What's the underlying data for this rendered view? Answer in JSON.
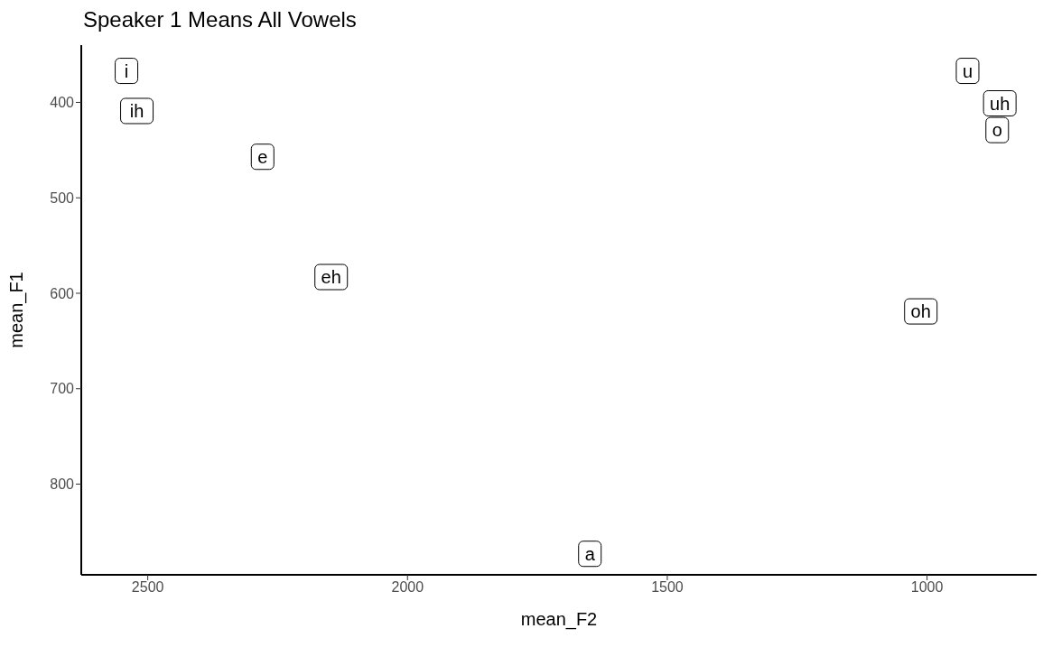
{
  "chart_data": {
    "type": "scatter",
    "title": "Speaker 1 Means All Vowels",
    "xlabel": "mean_F2",
    "ylabel": "mean_F1",
    "grid": false,
    "legend": false,
    "xlim": [
      2628,
      789
    ],
    "xticks": [
      2500,
      2000,
      1500,
      1000
    ],
    "ylim": [
      895,
      340
    ],
    "yticks": [
      400,
      500,
      600,
      700,
      800
    ],
    "series": [
      {
        "name": "i",
        "color": "#000000",
        "x": [
          2541
        ],
        "values": [
          367
        ]
      },
      {
        "name": "ih",
        "color": "#000000",
        "x": [
          2521
        ],
        "values": [
          409
        ]
      },
      {
        "name": "e",
        "color": "#000000",
        "x": [
          2279
        ],
        "values": [
          457
        ]
      },
      {
        "name": "eh",
        "color": "#000000",
        "x": [
          2147
        ],
        "values": [
          583
        ]
      },
      {
        "name": "a",
        "color": "#000000",
        "x": [
          1649
        ],
        "values": [
          873
        ]
      },
      {
        "name": "oh",
        "color": "#000000",
        "x": [
          1012
        ],
        "values": [
          619
        ]
      },
      {
        "name": "u",
        "color": "#000000",
        "x": [
          922
        ],
        "values": [
          367
        ]
      },
      {
        "name": "uh",
        "color": "#000000",
        "x": [
          860
        ],
        "values": [
          401
        ]
      },
      {
        "name": "o",
        "color": "#000000",
        "x": [
          865
        ],
        "values": [
          429
        ]
      }
    ]
  }
}
